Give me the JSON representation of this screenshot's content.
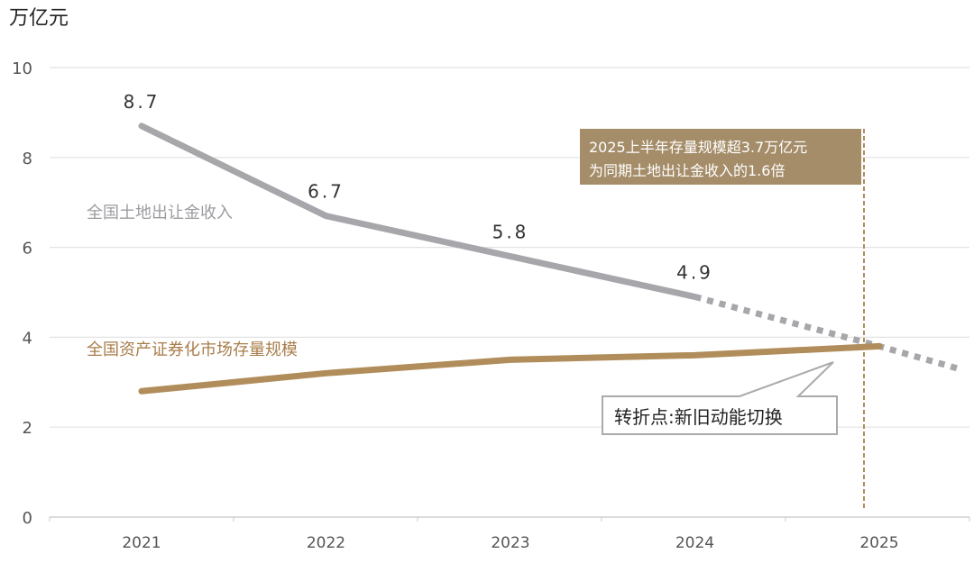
{
  "chart_data": {
    "type": "line",
    "unit_label": "万亿元",
    "ylim": [
      0,
      10
    ],
    "y_ticks": [
      "0",
      "2",
      "4",
      "6",
      "8",
      "10"
    ],
    "categories": [
      "2021",
      "2022",
      "2023",
      "2024",
      "2025"
    ],
    "grid": true,
    "series": [
      {
        "name": "全国土地出让金收入",
        "color": "#a7a6ab",
        "values": [
          8.7,
          6.7,
          5.8,
          4.9,
          null
        ],
        "data_labels": [
          "8.7",
          "6.7",
          "5.8",
          "4.9"
        ],
        "projection_style": "dotted",
        "projection": [
          {
            "x": 2024,
            "y": 4.9
          },
          {
            "x": 2025,
            "y": 3.8
          },
          {
            "x": 2025.43,
            "y": 3.3
          }
        ]
      },
      {
        "name": "全国资产证券化市场存量规模",
        "color": "#b08d5a",
        "values": [
          2.8,
          3.2,
          3.5,
          3.6,
          3.8
        ]
      }
    ],
    "annotations": {
      "highlight_box": {
        "line1": "2025上半年存量规模超3.7万亿元",
        "line2": "为同期土地出让金收入的1.6倍",
        "color": "#a58d69"
      },
      "callout": "转折点:新旧动能切换",
      "marker_line_color": "#b08d5a"
    }
  }
}
